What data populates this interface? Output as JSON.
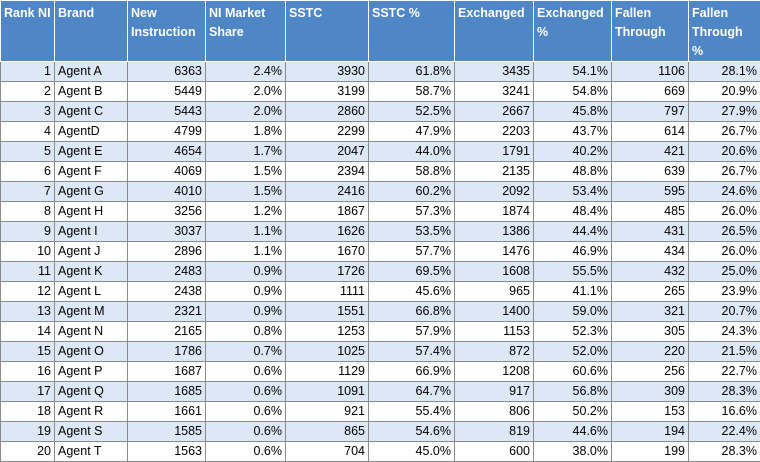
{
  "table": {
    "columns": [
      "Rank NI",
      "Brand",
      "New Instruction",
      "NI Market Share",
      "SSTC",
      "SSTC %",
      "Exchanged",
      "Exchanged %",
      "Fallen Through",
      "Fallen Through %"
    ],
    "rows": [
      [
        "1",
        "Agent A",
        "6363",
        "2.4%",
        "3930",
        "61.8%",
        "3435",
        "54.1%",
        "1106",
        "28.1%"
      ],
      [
        "2",
        "Agent B",
        "5449",
        "2.0%",
        "3199",
        "58.7%",
        "3241",
        "54.8%",
        "669",
        "20.9%"
      ],
      [
        "3",
        "Agent C",
        "5443",
        "2.0%",
        "2860",
        "52.5%",
        "2667",
        "45.8%",
        "797",
        "27.9%"
      ],
      [
        "4",
        "AgentD",
        "4799",
        "1.8%",
        "2299",
        "47.9%",
        "2203",
        "43.7%",
        "614",
        "26.7%"
      ],
      [
        "5",
        "Agent E",
        "4654",
        "1.7%",
        "2047",
        "44.0%",
        "1791",
        "40.2%",
        "421",
        "20.6%"
      ],
      [
        "6",
        "Agent F",
        "4069",
        "1.5%",
        "2394",
        "58.8%",
        "2135",
        "48.8%",
        "639",
        "26.7%"
      ],
      [
        "7",
        "Agent G",
        "4010",
        "1.5%",
        "2416",
        "60.2%",
        "2092",
        "53.4%",
        "595",
        "24.6%"
      ],
      [
        "8",
        "Agent H",
        "3256",
        "1.2%",
        "1867",
        "57.3%",
        "1874",
        "48.4%",
        "485",
        "26.0%"
      ],
      [
        "9",
        "Agent I",
        "3037",
        "1.1%",
        "1626",
        "53.5%",
        "1386",
        "44.4%",
        "431",
        "26.5%"
      ],
      [
        "10",
        "Agent J",
        "2896",
        "1.1%",
        "1670",
        "57.7%",
        "1476",
        "46.9%",
        "434",
        "26.0%"
      ],
      [
        "11",
        "Agent K",
        "2483",
        "0.9%",
        "1726",
        "69.5%",
        "1608",
        "55.5%",
        "432",
        "25.0%"
      ],
      [
        "12",
        "Agent L",
        "2438",
        "0.9%",
        "1111",
        "45.6%",
        "965",
        "41.1%",
        "265",
        "23.9%"
      ],
      [
        "13",
        "Agent M",
        "2321",
        "0.9%",
        "1551",
        "66.8%",
        "1400",
        "59.0%",
        "321",
        "20.7%"
      ],
      [
        "14",
        "Agent N",
        "2165",
        "0.8%",
        "1253",
        "57.9%",
        "1153",
        "52.3%",
        "305",
        "24.3%"
      ],
      [
        "15",
        "Agent O",
        "1786",
        "0.7%",
        "1025",
        "57.4%",
        "872",
        "52.0%",
        "220",
        "21.5%"
      ],
      [
        "16",
        "Agent P",
        "1687",
        "0.6%",
        "1129",
        "66.9%",
        "1208",
        "60.6%",
        "256",
        "22.7%"
      ],
      [
        "17",
        "Agent Q",
        "1685",
        "0.6%",
        "1091",
        "64.7%",
        "917",
        "56.8%",
        "309",
        "28.3%"
      ],
      [
        "18",
        "Agent R",
        "1661",
        "0.6%",
        "921",
        "55.4%",
        "806",
        "50.2%",
        "153",
        "16.6%"
      ],
      [
        "19",
        "Agent S",
        "1585",
        "0.6%",
        "865",
        "54.6%",
        "819",
        "44.6%",
        "194",
        "22.4%"
      ],
      [
        "20",
        "Agent T",
        "1563",
        "0.6%",
        "704",
        "45.0%",
        "600",
        "38.0%",
        "199",
        "28.3%"
      ]
    ]
  },
  "colors": {
    "header_bg": "#4f86c6",
    "header_text": "#ffffff",
    "band_row": "#dde8f6",
    "plain_row": "#ffffff",
    "grid_line": "#8a8a8a"
  }
}
